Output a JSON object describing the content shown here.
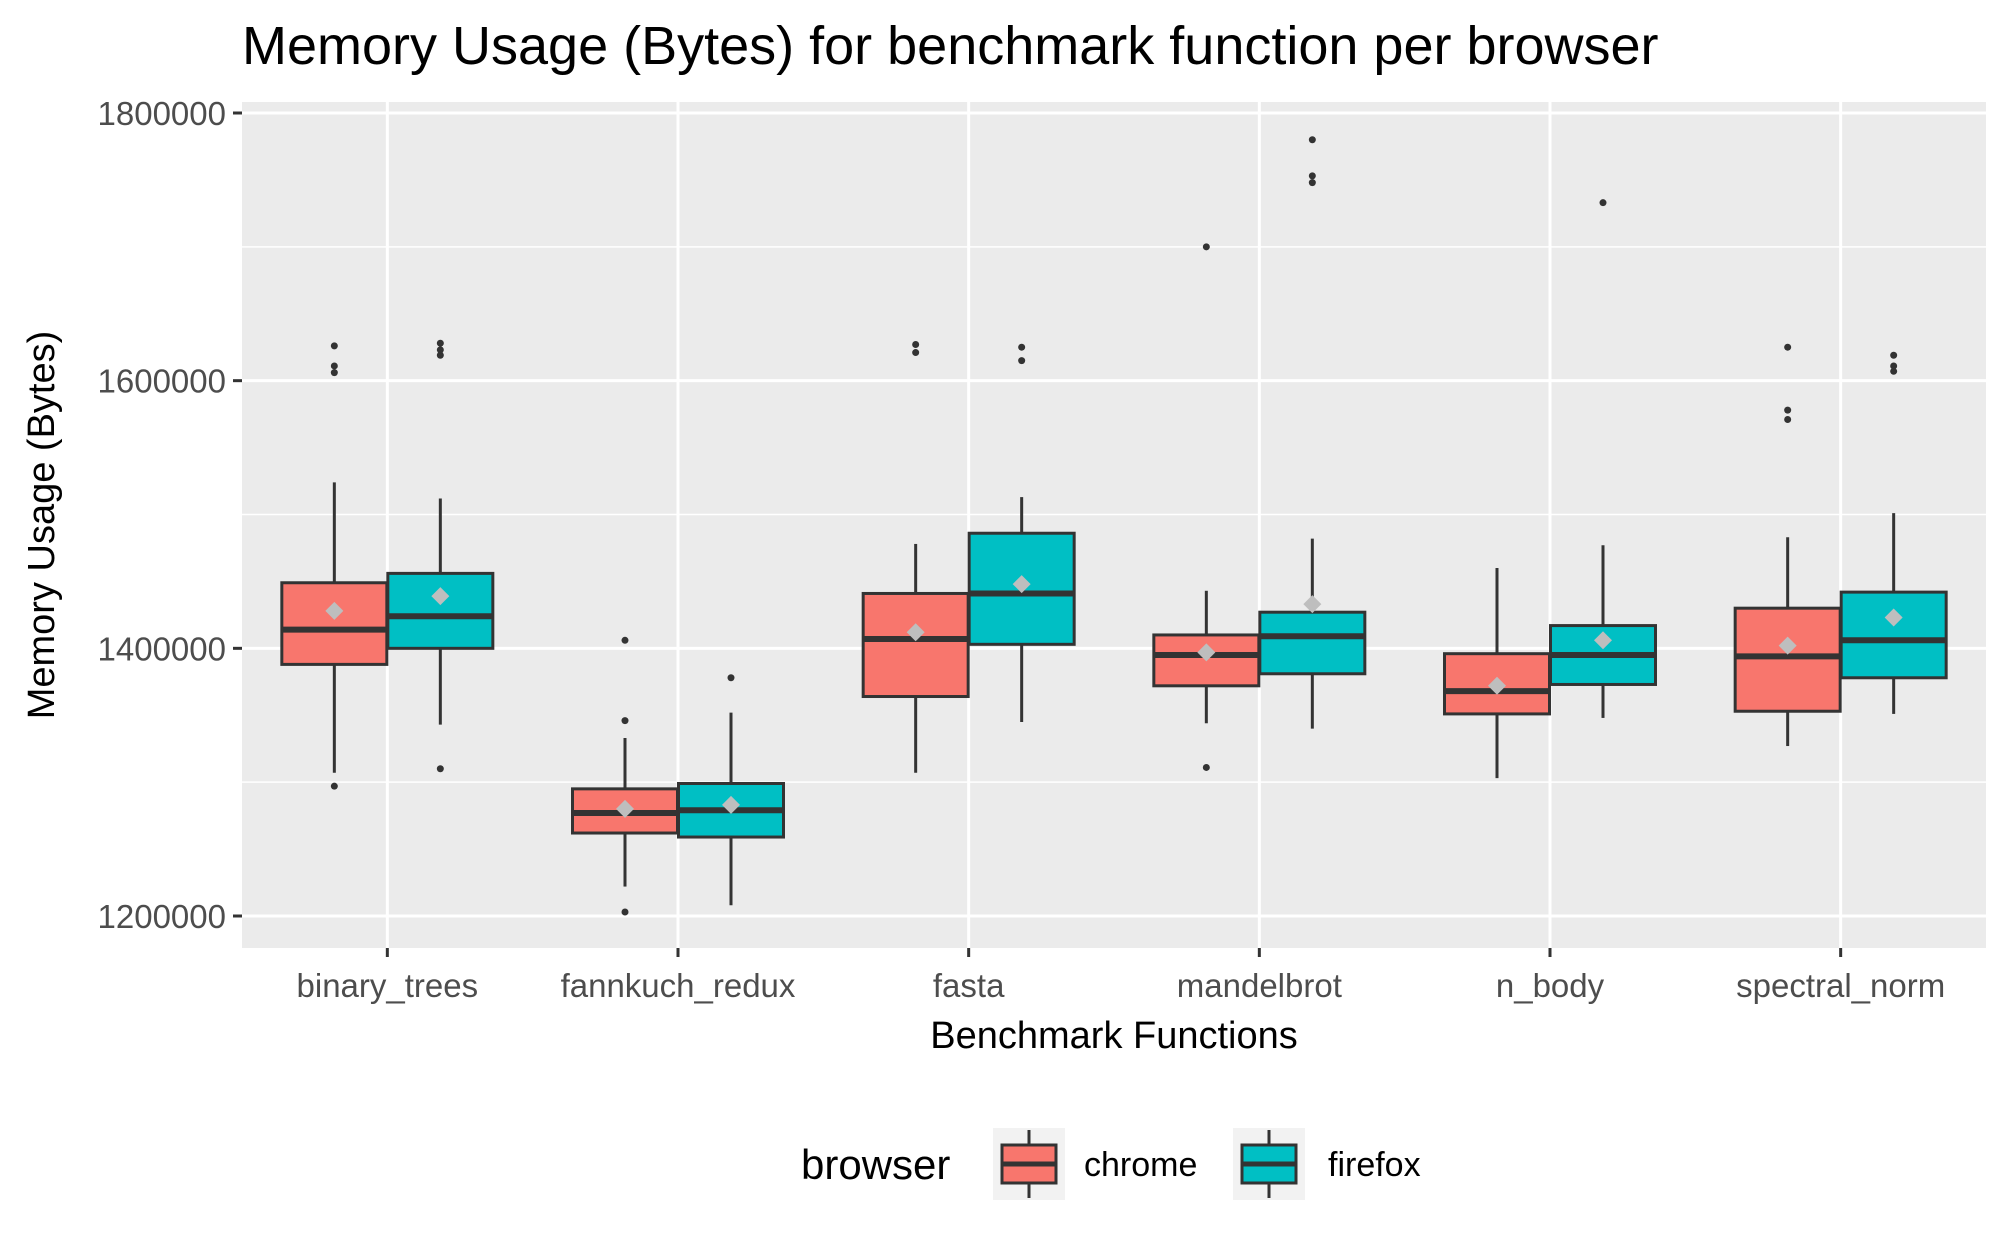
{
  "chart_data": {
    "type": "box",
    "title": "Memory Usage (Bytes) for benchmark function per browser",
    "xlabel": "Benchmark Functions",
    "ylabel": "Memory Usage (Bytes)",
    "ylim": [
      1175000,
      1810000
    ],
    "yticks": [
      1200000,
      1400000,
      1600000,
      1800000
    ],
    "ytick_labels": [
      "1200000",
      "1400000",
      "1600000",
      "1800000"
    ],
    "categories": [
      "binary_trees",
      "fannkuch_redux",
      "fasta",
      "mandelbrot",
      "n_body",
      "spectral_norm"
    ],
    "grid": true,
    "legend": {
      "title": "browser",
      "position": "bottom"
    },
    "series": [
      {
        "name": "chrome",
        "color": "#f8766d",
        "boxes": [
          {
            "low": 1307000,
            "q1": 1388000,
            "median": 1414000,
            "q3": 1449000,
            "high": 1524000,
            "mean": 1428000,
            "outliers": [
              1297000,
              1606000,
              1611000,
              1626000
            ]
          },
          {
            "low": 1222000,
            "q1": 1262000,
            "median": 1277000,
            "q3": 1295000,
            "high": 1333000,
            "mean": 1280000,
            "outliers": [
              1203000,
              1346000,
              1406000
            ]
          },
          {
            "low": 1307000,
            "q1": 1364000,
            "median": 1407000,
            "q3": 1441000,
            "high": 1478000,
            "mean": 1412000,
            "outliers": [
              1621000,
              1627000
            ]
          },
          {
            "low": 1344000,
            "q1": 1372000,
            "median": 1395000,
            "q3": 1410000,
            "high": 1443000,
            "mean": 1397000,
            "outliers": [
              1311000,
              1700000
            ]
          },
          {
            "low": 1303000,
            "q1": 1351000,
            "median": 1368000,
            "q3": 1396000,
            "high": 1460000,
            "mean": 1372000,
            "outliers": []
          },
          {
            "low": 1327000,
            "q1": 1353000,
            "median": 1394000,
            "q3": 1430000,
            "high": 1483000,
            "mean": 1402000,
            "outliers": [
              1571000,
              1578000,
              1625000
            ]
          }
        ]
      },
      {
        "name": "firefox",
        "color": "#00bfc4",
        "boxes": [
          {
            "low": 1343000,
            "q1": 1400000,
            "median": 1424000,
            "q3": 1456000,
            "high": 1512000,
            "mean": 1439000,
            "outliers": [
              1310000,
              1619000,
              1623000,
              1628000
            ]
          },
          {
            "low": 1208000,
            "q1": 1259000,
            "median": 1279000,
            "q3": 1299000,
            "high": 1352000,
            "mean": 1283000,
            "outliers": [
              1378000
            ]
          },
          {
            "low": 1345000,
            "q1": 1403000,
            "median": 1441000,
            "q3": 1486000,
            "high": 1513000,
            "mean": 1448000,
            "outliers": [
              1615000,
              1625000
            ]
          },
          {
            "low": 1340000,
            "q1": 1381000,
            "median": 1409000,
            "q3": 1427000,
            "high": 1482000,
            "mean": 1433000,
            "outliers": [
              1748000,
              1753000,
              1780000
            ]
          },
          {
            "low": 1348000,
            "q1": 1373000,
            "median": 1395000,
            "q3": 1417000,
            "high": 1477000,
            "mean": 1406000,
            "outliers": [
              1733000
            ]
          },
          {
            "low": 1351000,
            "q1": 1378000,
            "median": 1406000,
            "q3": 1442000,
            "high": 1501000,
            "mean": 1423000,
            "outliers": [
              1607000,
              1611000,
              1619000
            ]
          }
        ]
      }
    ]
  }
}
